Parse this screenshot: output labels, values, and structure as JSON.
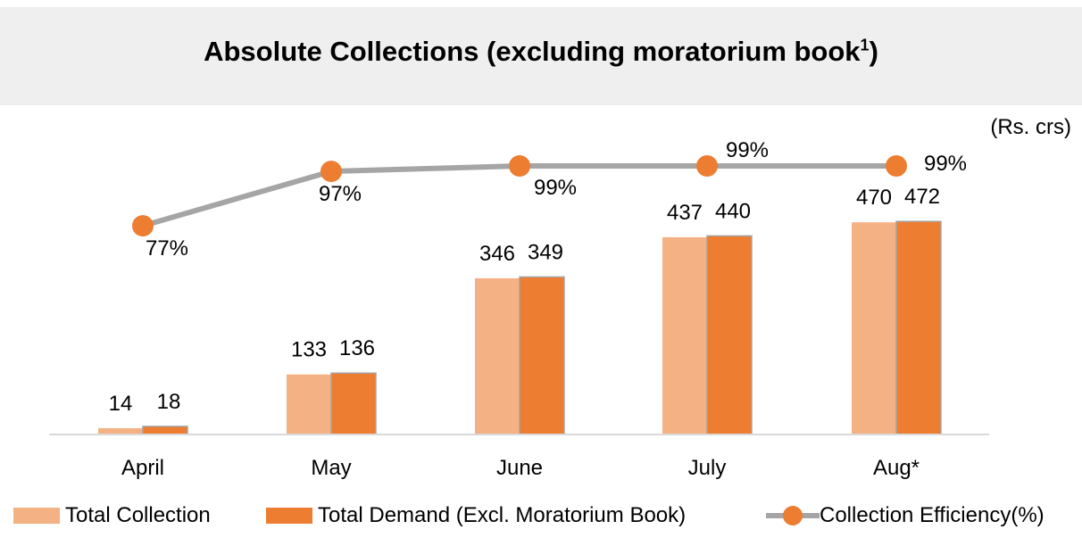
{
  "title_main": "Absolute Collections (excluding moratorium book",
  "title_sup": "1",
  "title_close": ")",
  "unit_label": "(Rs. crs)",
  "colors": {
    "total_collection": "#f4b183",
    "total_demand": "#ed7d31",
    "efficiency_line": "#a5a5a5",
    "efficiency_marker": "#ed7d31"
  },
  "chart_data": {
    "type": "bar",
    "title": "Absolute Collections (excluding moratorium book1)",
    "categories": [
      "April",
      "May",
      "June",
      "July",
      "Aug*"
    ],
    "series": [
      {
        "name": "Total Collection",
        "type": "bar",
        "values": [
          14,
          133,
          346,
          437,
          470
        ]
      },
      {
        "name": "Total Demand (Excl. Moratorium Book)",
        "type": "bar",
        "values": [
          18,
          136,
          349,
          440,
          472
        ]
      },
      {
        "name": "Collection Efficiency(%)",
        "type": "line",
        "values": [
          77,
          97,
          99,
          99,
          99
        ],
        "labels": [
          "77%",
          "97%",
          "99%",
          "99%",
          "99%"
        ]
      }
    ],
    "legend_position": "bottom",
    "grid": false
  }
}
